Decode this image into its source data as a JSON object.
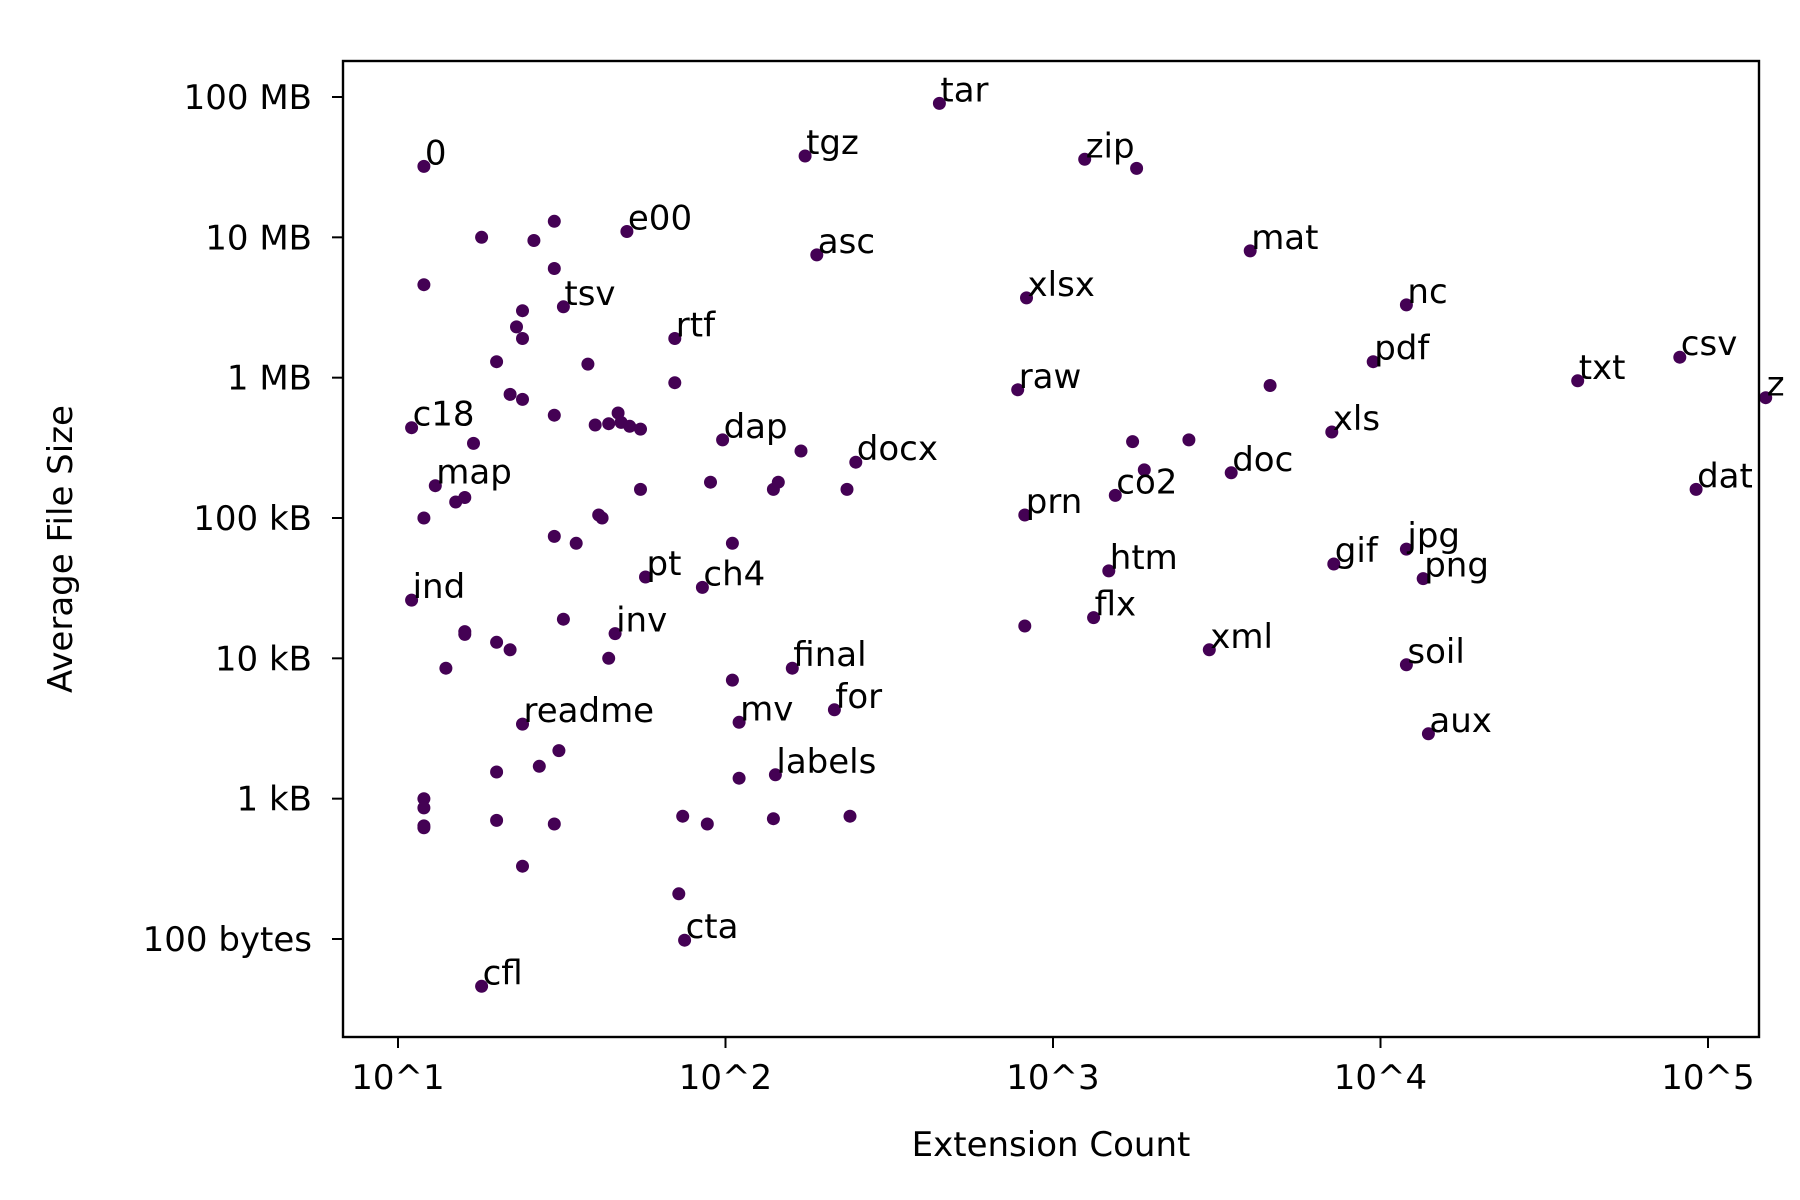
{
  "chart_data": {
    "type": "scatter",
    "title": "",
    "xlabel": "Extension Count",
    "ylabel": "Average File Size",
    "x_scale": "log",
    "y_scale": "log",
    "xlim": [
      6.6,
      300000
    ],
    "ylim": [
      20,
      400000000
    ],
    "x_ticks": [
      {
        "value": 10,
        "label": "10^1"
      },
      {
        "value": 100,
        "label": "10^2"
      },
      {
        "value": 1000,
        "label": "10^3"
      },
      {
        "value": 10000,
        "label": "10^4"
      },
      {
        "value": 100000,
        "label": "10^5"
      }
    ],
    "y_ticks": [
      {
        "value": 100,
        "label": "100 bytes"
      },
      {
        "value": 1000,
        "label": "1 kB"
      },
      {
        "value": 10000,
        "label": "10 kB"
      },
      {
        "value": 100000,
        "label": "100 kB"
      },
      {
        "value": 1000000,
        "label": "1 MB"
      },
      {
        "value": 10000000,
        "label": "10 MB"
      },
      {
        "value": 100000000,
        "label": "100 MB"
      }
    ],
    "grid": false,
    "marker_color": "#440154",
    "points": [
      {
        "x": 450,
        "y": 90000000,
        "label": "tar"
      },
      {
        "x": 12,
        "y": 32000000,
        "label": "0"
      },
      {
        "x": 175,
        "y": 38000000,
        "label": "tgz"
      },
      {
        "x": 1250,
        "y": 36000000,
        "label": "zip"
      },
      {
        "x": 1800,
        "y": 31000000,
        "label": ""
      },
      {
        "x": 50,
        "y": 11000000,
        "label": "e00"
      },
      {
        "x": 18,
        "y": 10000000,
        "label": ""
      },
      {
        "x": 26,
        "y": 9500000,
        "label": ""
      },
      {
        "x": 30,
        "y": 13000000,
        "label": ""
      },
      {
        "x": 190,
        "y": 7500000,
        "label": "asc"
      },
      {
        "x": 4000,
        "y": 8000000,
        "label": "mat"
      },
      {
        "x": 12,
        "y": 4600000,
        "label": ""
      },
      {
        "x": 30,
        "y": 6000000,
        "label": ""
      },
      {
        "x": 32,
        "y": 3200000,
        "label": "tsv"
      },
      {
        "x": 24,
        "y": 3000000,
        "label": ""
      },
      {
        "x": 23,
        "y": 2300000,
        "label": ""
      },
      {
        "x": 24,
        "y": 1900000,
        "label": ""
      },
      {
        "x": 830,
        "y": 3700000,
        "label": "xlsx"
      },
      {
        "x": 12000,
        "y": 3300000,
        "label": "nc"
      },
      {
        "x": 70,
        "y": 1900000,
        "label": "rtf"
      },
      {
        "x": 9500,
        "y": 1300000,
        "label": "pdf"
      },
      {
        "x": 40000,
        "y": 950000,
        "label": "txt"
      },
      {
        "x": 82000,
        "y": 1400000,
        "label": "csv"
      },
      {
        "x": 150000,
        "y": 720000,
        "label": "z"
      },
      {
        "x": 20,
        "y": 1300000,
        "label": ""
      },
      {
        "x": 38,
        "y": 1250000,
        "label": ""
      },
      {
        "x": 70,
        "y": 920000,
        "label": ""
      },
      {
        "x": 780,
        "y": 820000,
        "label": "raw"
      },
      {
        "x": 4600,
        "y": 880000,
        "label": ""
      },
      {
        "x": 22,
        "y": 760000,
        "label": ""
      },
      {
        "x": 24,
        "y": 700000,
        "label": ""
      },
      {
        "x": 30,
        "y": 540000,
        "label": ""
      },
      {
        "x": 11,
        "y": 440000,
        "label": "c18"
      },
      {
        "x": 40,
        "y": 460000,
        "label": ""
      },
      {
        "x": 44,
        "y": 470000,
        "label": ""
      },
      {
        "x": 47,
        "y": 560000,
        "label": ""
      },
      {
        "x": 48,
        "y": 480000,
        "label": ""
      },
      {
        "x": 51,
        "y": 450000,
        "label": ""
      },
      {
        "x": 55,
        "y": 430000,
        "label": ""
      },
      {
        "x": 17,
        "y": 340000,
        "label": ""
      },
      {
        "x": 98,
        "y": 360000,
        "label": "dap"
      },
      {
        "x": 170,
        "y": 300000,
        "label": ""
      },
      {
        "x": 7100,
        "y": 410000,
        "label": "xls"
      },
      {
        "x": 1750,
        "y": 350000,
        "label": ""
      },
      {
        "x": 2600,
        "y": 360000,
        "label": ""
      },
      {
        "x": 250,
        "y": 250000,
        "label": "docx"
      },
      {
        "x": 1900,
        "y": 220000,
        "label": ""
      },
      {
        "x": 3500,
        "y": 210000,
        "label": "doc"
      },
      {
        "x": 13,
        "y": 170000,
        "label": "map"
      },
      {
        "x": 15,
        "y": 130000,
        "label": ""
      },
      {
        "x": 16,
        "y": 140000,
        "label": ""
      },
      {
        "x": 55,
        "y": 160000,
        "label": ""
      },
      {
        "x": 90,
        "y": 180000,
        "label": ""
      },
      {
        "x": 140,
        "y": 160000,
        "label": ""
      },
      {
        "x": 145,
        "y": 180000,
        "label": ""
      },
      {
        "x": 235,
        "y": 160000,
        "label": ""
      },
      {
        "x": 1550,
        "y": 145000,
        "label": "co2"
      },
      {
        "x": 92000,
        "y": 160000,
        "label": "dat"
      },
      {
        "x": 820,
        "y": 105000,
        "label": "prn"
      },
      {
        "x": 12,
        "y": 100000,
        "label": ""
      },
      {
        "x": 42,
        "y": 100000,
        "label": ""
      },
      {
        "x": 41,
        "y": 105000,
        "label": ""
      },
      {
        "x": 30,
        "y": 74000,
        "label": ""
      },
      {
        "x": 35,
        "y": 66000,
        "label": ""
      },
      {
        "x": 105,
        "y": 66000,
        "label": ""
      },
      {
        "x": 12000,
        "y": 60000,
        "label": "jpg"
      },
      {
        "x": 7200,
        "y": 47000,
        "label": "gif"
      },
      {
        "x": 1480,
        "y": 42000,
        "label": "htm"
      },
      {
        "x": 13500,
        "y": 37000,
        "label": "png"
      },
      {
        "x": 57,
        "y": 38000,
        "label": "pt"
      },
      {
        "x": 85,
        "y": 32000,
        "label": "ch4"
      },
      {
        "x": 11,
        "y": 26000,
        "label": "ind"
      },
      {
        "x": 1330,
        "y": 19500,
        "label": "flx"
      },
      {
        "x": 32,
        "y": 19000,
        "label": ""
      },
      {
        "x": 820,
        "y": 17000,
        "label": ""
      },
      {
        "x": 16,
        "y": 15500,
        "label": ""
      },
      {
        "x": 16,
        "y": 14800,
        "label": ""
      },
      {
        "x": 46,
        "y": 15000,
        "label": "inv"
      },
      {
        "x": 20,
        "y": 13000,
        "label": ""
      },
      {
        "x": 22,
        "y": 11500,
        "label": ""
      },
      {
        "x": 3000,
        "y": 11500,
        "label": "xml"
      },
      {
        "x": 44,
        "y": 10000,
        "label": ""
      },
      {
        "x": 12000,
        "y": 9000,
        "label": "soil"
      },
      {
        "x": 14,
        "y": 8500,
        "label": ""
      },
      {
        "x": 160,
        "y": 8500,
        "label": "final"
      },
      {
        "x": 105,
        "y": 7000,
        "label": ""
      },
      {
        "x": 215,
        "y": 4300,
        "label": "for"
      },
      {
        "x": 110,
        "y": 3500,
        "label": "mv"
      },
      {
        "x": 24,
        "y": 3400,
        "label": "readme"
      },
      {
        "x": 14000,
        "y": 2900,
        "label": "aux"
      },
      {
        "x": 31,
        "y": 2200,
        "label": ""
      },
      {
        "x": 27,
        "y": 1700,
        "label": ""
      },
      {
        "x": 20,
        "y": 1550,
        "label": ""
      },
      {
        "x": 142,
        "y": 1480,
        "label": "labels"
      },
      {
        "x": 110,
        "y": 1400,
        "label": ""
      },
      {
        "x": 12,
        "y": 1000,
        "label": ""
      },
      {
        "x": 12,
        "y": 860,
        "label": ""
      },
      {
        "x": 12,
        "y": 640,
        "label": ""
      },
      {
        "x": 12,
        "y": 620,
        "label": ""
      },
      {
        "x": 20,
        "y": 700,
        "label": ""
      },
      {
        "x": 30,
        "y": 660,
        "label": ""
      },
      {
        "x": 74,
        "y": 750,
        "label": ""
      },
      {
        "x": 88,
        "y": 660,
        "label": ""
      },
      {
        "x": 140,
        "y": 720,
        "label": ""
      },
      {
        "x": 240,
        "y": 750,
        "label": ""
      },
      {
        "x": 24,
        "y": 330,
        "label": ""
      },
      {
        "x": 72,
        "y": 210,
        "label": ""
      },
      {
        "x": 75,
        "y": 98,
        "label": "cta"
      },
      {
        "x": 18,
        "y": 46,
        "label": "cfl"
      }
    ]
  }
}
